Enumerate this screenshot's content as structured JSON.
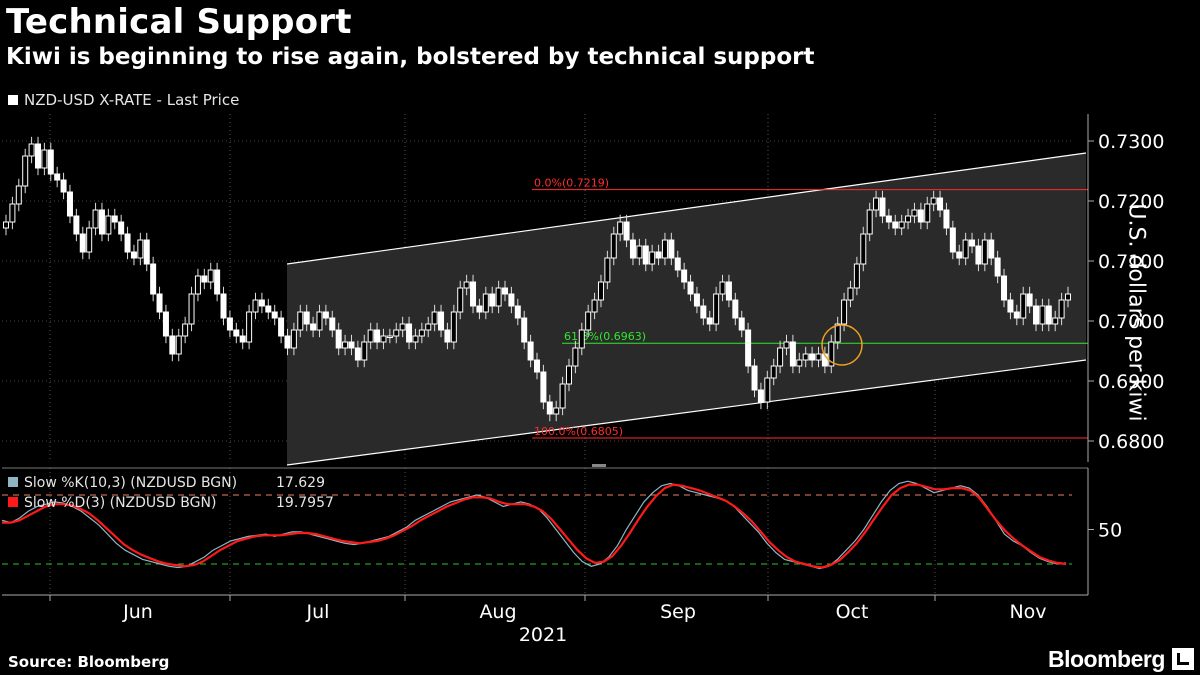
{
  "header": {
    "title": "Technical Support",
    "subtitle": "Kiwi is beginning to rise again, bolstered by technical support",
    "legend_label": "NZD-USD X-RATE - Last Price"
  },
  "footer": {
    "source": "Source: Bloomberg",
    "brand": "Bloomberg"
  },
  "chart_data": [
    {
      "type": "candlestick",
      "series_name": "NZD-USD X-RATE - Last Price",
      "ylabel": "U.S. dollars per kiwi",
      "ylim": [
        0.6765,
        0.7345
      ],
      "y_ticks": [
        0.73,
        0.72,
        0.71,
        0.7,
        0.69,
        0.68
      ],
      "y_tick_labels": [
        "0.7300",
        "0.7200",
        "0.7100",
        "0.7000",
        "0.6900",
        "0.6800"
      ],
      "x_labels": [
        "Jun",
        "Jul",
        "Aug",
        "Sep",
        "Oct",
        "Nov"
      ],
      "x_year": "2021",
      "closes": [
        0.7165,
        0.7195,
        0.7225,
        0.7275,
        0.7295,
        0.7255,
        0.7285,
        0.7245,
        0.7235,
        0.7215,
        0.7175,
        0.7145,
        0.7115,
        0.7155,
        0.7185,
        0.7145,
        0.7175,
        0.7165,
        0.7145,
        0.7115,
        0.7105,
        0.7135,
        0.7095,
        0.7045,
        0.7015,
        0.6975,
        0.6945,
        0.6975,
        0.6995,
        0.7045,
        0.7075,
        0.7065,
        0.7085,
        0.7045,
        0.7005,
        0.6985,
        0.6975,
        0.6965,
        0.7015,
        0.7035,
        0.7025,
        0.7015,
        0.7005,
        0.6975,
        0.6955,
        0.6985,
        0.7015,
        0.6995,
        0.6985,
        0.7015,
        0.7005,
        0.6985,
        0.6955,
        0.6965,
        0.6955,
        0.6935,
        0.6965,
        0.6985,
        0.6965,
        0.6975,
        0.6975,
        0.6985,
        0.6995,
        0.6965,
        0.6975,
        0.6985,
        0.6995,
        0.7015,
        0.6985,
        0.6965,
        0.7015,
        0.7055,
        0.7065,
        0.7025,
        0.7015,
        0.7045,
        0.7025,
        0.7055,
        0.7045,
        0.7025,
        0.7005,
        0.6965,
        0.6935,
        0.6915,
        0.6865,
        0.6845,
        0.6855,
        0.6895,
        0.6925,
        0.6955,
        0.6985,
        0.7015,
        0.7035,
        0.7065,
        0.7105,
        0.7145,
        0.7165,
        0.7135,
        0.7105,
        0.7125,
        0.7095,
        0.7115,
        0.7105,
        0.7135,
        0.7105,
        0.7085,
        0.7065,
        0.7045,
        0.7025,
        0.7005,
        0.6995,
        0.7045,
        0.7065,
        0.7035,
        0.7005,
        0.6985,
        0.6925,
        0.6885,
        0.6865,
        0.6905,
        0.6925,
        0.6955,
        0.6965,
        0.6925,
        0.6935,
        0.6945,
        0.6935,
        0.6945,
        0.6925,
        0.6965,
        0.6995,
        0.7035,
        0.7055,
        0.7095,
        0.7145,
        0.7185,
        0.7205,
        0.7175,
        0.7165,
        0.7155,
        0.7165,
        0.7175,
        0.7185,
        0.7165,
        0.7195,
        0.7205,
        0.7185,
        0.7155,
        0.7115,
        0.7105,
        0.7135,
        0.7125,
        0.7095,
        0.7135,
        0.7105,
        0.7075,
        0.7035,
        0.7015,
        0.7005,
        0.7045,
        0.7025,
        0.6995,
        0.7025,
        0.6995,
        0.7005,
        0.7035,
        0.7045
      ],
      "annotations": [
        {
          "label": "0.0%(0.7219)",
          "value": 0.7219,
          "color": "#ff2d2d"
        },
        {
          "label": "61.8%(0.6963)",
          "value": 0.6963,
          "color": "#2ee82e"
        },
        {
          "label": "100.0%(0.6805)",
          "value": 0.6805,
          "color": "#ff2d2d"
        }
      ],
      "channel": {
        "upper": [
          0.7095,
          0.728
        ],
        "lower": [
          0.676,
          0.6935
        ]
      },
      "colors": {
        "up": "#ffffff",
        "down": "#ffffff",
        "channel": "#ffffff",
        "highlight": "#f0a020"
      }
    },
    {
      "type": "line",
      "title": "",
      "y_ticks": [
        50
      ],
      "y_tick_labels": [
        "50"
      ],
      "ylim": [
        0,
        100
      ],
      "ref_lines": [
        80,
        20
      ],
      "series": [
        {
          "name": "Slow %K(10,3) (NZDUSD BGN)",
          "last_value": "17.629",
          "color": "#8fb5c4",
          "values": [
            58,
            56,
            60,
            66,
            70,
            72,
            74,
            73,
            70,
            66,
            60,
            54,
            46,
            38,
            32,
            28,
            24,
            22,
            20,
            18,
            17,
            18,
            22,
            26,
            32,
            36,
            40,
            42,
            44,
            45,
            46,
            44,
            46,
            48,
            48,
            46,
            44,
            42,
            40,
            38,
            37,
            38,
            40,
            42,
            44,
            48,
            52,
            58,
            62,
            66,
            70,
            74,
            76,
            78,
            80,
            78,
            74,
            70,
            72,
            74,
            72,
            68,
            60,
            50,
            40,
            30,
            22,
            18,
            20,
            26,
            36,
            50,
            62,
            74,
            82,
            88,
            90,
            88,
            84,
            82,
            80,
            78,
            76,
            72,
            64,
            56,
            48,
            38,
            30,
            24,
            22,
            20,
            18,
            16,
            18,
            24,
            32,
            40,
            50,
            62,
            74,
            84,
            90,
            92,
            90,
            86,
            82,
            84,
            86,
            88,
            86,
            80,
            70,
            58,
            46,
            40,
            36,
            30,
            25,
            22,
            20,
            21
          ]
        },
        {
          "name": "Slow %D(3) (NZDUSD BGN)",
          "last_value": "19.7957",
          "color": "#ff1a1a",
          "values": [
            56,
            56,
            58,
            62,
            66,
            70,
            72,
            72,
            71,
            68,
            64,
            58,
            51,
            44,
            37,
            32,
            28,
            25,
            22,
            20,
            19,
            18,
            19,
            22,
            27,
            32,
            36,
            40,
            42,
            44,
            45,
            45,
            45,
            46,
            47,
            47,
            46,
            44,
            42,
            40,
            39,
            38,
            39,
            40,
            42,
            45,
            49,
            53,
            58,
            62,
            66,
            70,
            73,
            76,
            78,
            78,
            77,
            74,
            72,
            72,
            72,
            70,
            66,
            59,
            50,
            41,
            32,
            25,
            21,
            22,
            27,
            36,
            47,
            59,
            70,
            79,
            86,
            89,
            88,
            86,
            84,
            81,
            78,
            75,
            70,
            64,
            57,
            48,
            39,
            32,
            26,
            22,
            20,
            18,
            17,
            19,
            23,
            30,
            38,
            48,
            59,
            70,
            80,
            86,
            89,
            89,
            87,
            85,
            85,
            86,
            86,
            84,
            78,
            68,
            58,
            49,
            42,
            36,
            31,
            26,
            23,
            21,
            20
          ]
        }
      ]
    }
  ]
}
